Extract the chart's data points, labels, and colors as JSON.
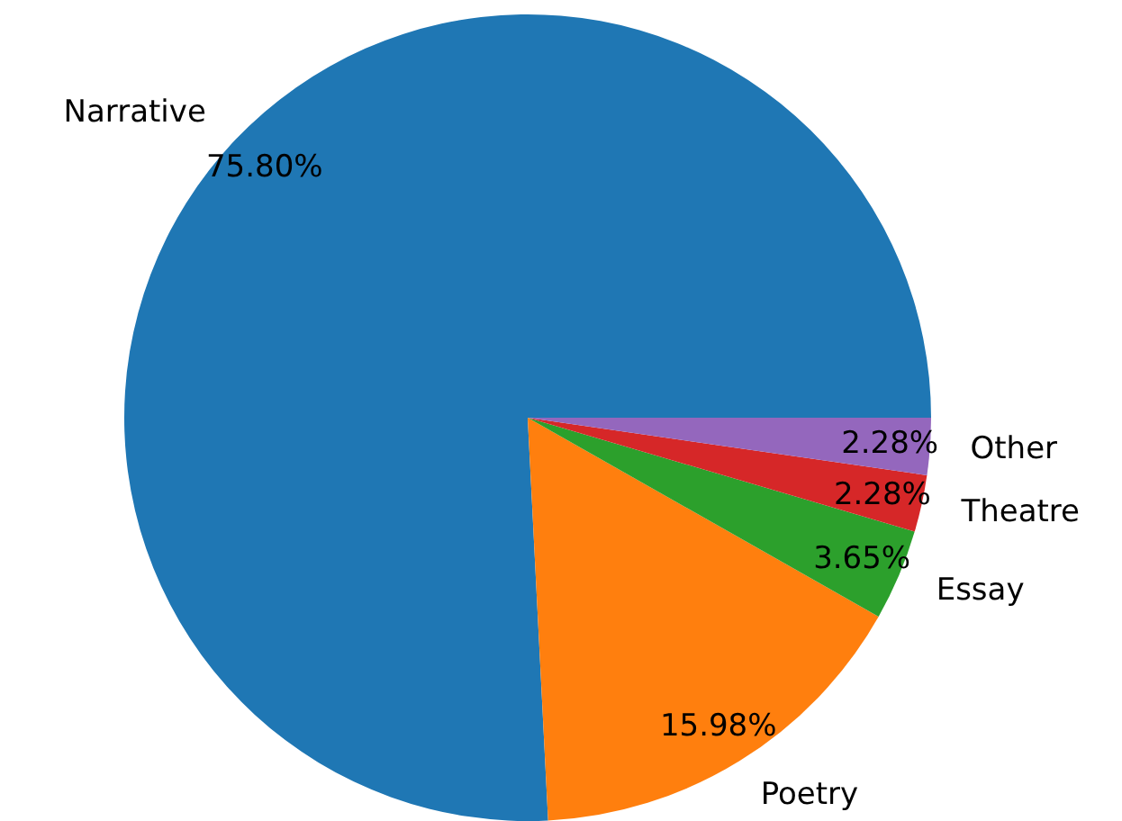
{
  "chart_data": {
    "type": "pie",
    "categories": [
      "Narrative",
      "Poetry",
      "Essay",
      "Theatre",
      "Other"
    ],
    "values": [
      75.8,
      15.98,
      3.65,
      2.28,
      2.28
    ],
    "colors": [
      "#1f77b4",
      "#ff7f0e",
      "#2ca02c",
      "#d62728",
      "#9467bd"
    ],
    "value_labels": [
      "75.80%",
      "15.98%",
      "3.65%",
      "2.28%",
      "2.28%"
    ]
  }
}
